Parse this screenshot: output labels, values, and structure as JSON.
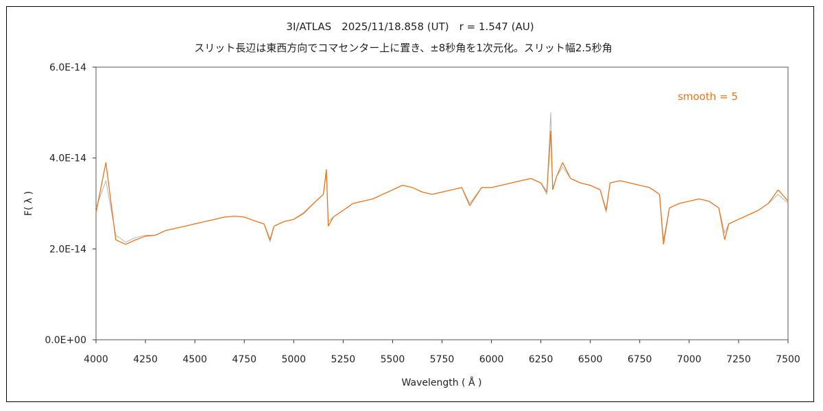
{
  "chart_data": {
    "type": "line",
    "title": "3I/ATLAS　2025/11/18.858 (UT)　r = 1.547 (AU)",
    "subtitle": "スリット長辺は東西方向でコマセンター上に置き、±8秒角を1次元化。スリット幅2.5秒角",
    "xlabel": "Wavelength ( Å )",
    "ylabel": "F( λ )",
    "xlim": [
      4000,
      7500
    ],
    "ylim": [
      0,
      6e-14
    ],
    "xticks": [
      "4000",
      "4250",
      "4500",
      "4750",
      "5000",
      "5250",
      "5500",
      "5750",
      "6000",
      "6250",
      "6500",
      "6750",
      "7000",
      "7250",
      "7500"
    ],
    "yticks": [
      "0.0E+00",
      "2.0E-14",
      "4.0E-14",
      "6.0E-14"
    ],
    "annotation": "smooth = 5",
    "grid": false,
    "series": [
      {
        "role": "raw",
        "color": "#b4b4b4",
        "x": [
          4000,
          4050,
          4100,
          4150,
          4200,
          4250,
          4300,
          4350,
          4400,
          4450,
          4500,
          4550,
          4600,
          4650,
          4700,
          4750,
          4800,
          4850,
          4880,
          4900,
          4950,
          5000,
          5050,
          5100,
          5150,
          5165,
          5175,
          5200,
          5250,
          5300,
          5350,
          5400,
          5450,
          5500,
          5550,
          5600,
          5650,
          5700,
          5750,
          5800,
          5850,
          5890,
          5950,
          6000,
          6050,
          6100,
          6150,
          6200,
          6250,
          6280,
          6300,
          6310,
          6330,
          6360,
          6400,
          6450,
          6500,
          6550,
          6580,
          6600,
          6650,
          6700,
          6750,
          6800,
          6850,
          6870,
          6900,
          6950,
          7000,
          7050,
          7100,
          7150,
          7180,
          7200,
          7250,
          7300,
          7350,
          7400,
          7450,
          7500
        ],
        "y": [
          2.9e-14,
          3.5e-14,
          2.3e-14,
          2.15e-14,
          2.25e-14,
          2.3e-14,
          2.3e-14,
          2.4e-14,
          2.45e-14,
          2.5e-14,
          2.55e-14,
          2.6e-14,
          2.65e-14,
          2.7e-14,
          2.72e-14,
          2.7e-14,
          2.62e-14,
          2.55e-14,
          2.15e-14,
          2.5e-14,
          2.6e-14,
          2.65e-14,
          2.8e-14,
          3e-14,
          3.2e-14,
          3.7e-14,
          2.6e-14,
          2.7e-14,
          2.85e-14,
          3e-14,
          3.05e-14,
          3.1e-14,
          3.2e-14,
          3.3e-14,
          3.4e-14,
          3.35e-14,
          3.25e-14,
          3.2e-14,
          3.25e-14,
          3.3e-14,
          3.35e-14,
          3e-14,
          3.35e-14,
          3.35e-14,
          3.4e-14,
          3.45e-14,
          3.5e-14,
          3.55e-14,
          3.45e-14,
          3.2e-14,
          5e-14,
          3.3e-14,
          3.6e-14,
          3.8e-14,
          3.55e-14,
          3.45e-14,
          3.4e-14,
          3.3e-14,
          2.8e-14,
          3.45e-14,
          3.5e-14,
          3.45e-14,
          3.4e-14,
          3.35e-14,
          3.2e-14,
          2.2e-14,
          2.9e-14,
          3e-14,
          3.05e-14,
          3.1e-14,
          3.05e-14,
          2.9e-14,
          2.35e-14,
          2.55e-14,
          2.65e-14,
          2.75e-14,
          2.85e-14,
          3e-14,
          3.2e-14,
          3e-14
        ]
      },
      {
        "role": "smooth",
        "color": "#ee7318",
        "x": [
          4000,
          4050,
          4100,
          4150,
          4200,
          4250,
          4300,
          4350,
          4400,
          4450,
          4500,
          4550,
          4600,
          4650,
          4700,
          4750,
          4800,
          4850,
          4880,
          4900,
          4950,
          5000,
          5050,
          5100,
          5150,
          5165,
          5175,
          5200,
          5250,
          5300,
          5350,
          5400,
          5450,
          5500,
          5550,
          5600,
          5650,
          5700,
          5750,
          5800,
          5850,
          5890,
          5950,
          6000,
          6050,
          6100,
          6150,
          6200,
          6250,
          6280,
          6300,
          6310,
          6330,
          6360,
          6400,
          6450,
          6500,
          6550,
          6580,
          6600,
          6650,
          6700,
          6750,
          6800,
          6850,
          6870,
          6900,
          6950,
          7000,
          7050,
          7100,
          7150,
          7180,
          7200,
          7250,
          7300,
          7350,
          7400,
          7450,
          7500
        ],
        "y": [
          2.8e-14,
          3.9e-14,
          2.2e-14,
          2.1e-14,
          2.2e-14,
          2.28e-14,
          2.3e-14,
          2.4e-14,
          2.45e-14,
          2.5e-14,
          2.55e-14,
          2.6e-14,
          2.65e-14,
          2.7e-14,
          2.72e-14,
          2.7e-14,
          2.62e-14,
          2.55e-14,
          2.2e-14,
          2.5e-14,
          2.6e-14,
          2.65e-14,
          2.78e-14,
          3e-14,
          3.2e-14,
          3.75e-14,
          2.5e-14,
          2.7e-14,
          2.85e-14,
          3e-14,
          3.05e-14,
          3.1e-14,
          3.2e-14,
          3.3e-14,
          3.4e-14,
          3.35e-14,
          3.25e-14,
          3.2e-14,
          3.25e-14,
          3.3e-14,
          3.35e-14,
          2.95e-14,
          3.35e-14,
          3.35e-14,
          3.4e-14,
          3.45e-14,
          3.5e-14,
          3.55e-14,
          3.45e-14,
          3.25e-14,
          4.6e-14,
          3.3e-14,
          3.6e-14,
          3.9e-14,
          3.55e-14,
          3.45e-14,
          3.4e-14,
          3.3e-14,
          2.85e-14,
          3.45e-14,
          3.5e-14,
          3.45e-14,
          3.4e-14,
          3.35e-14,
          3.2e-14,
          2.1e-14,
          2.9e-14,
          3e-14,
          3.05e-14,
          3.1e-14,
          3.05e-14,
          2.9e-14,
          2.2e-14,
          2.55e-14,
          2.65e-14,
          2.75e-14,
          2.85e-14,
          3e-14,
          3.3e-14,
          3.05e-14
        ]
      }
    ]
  }
}
